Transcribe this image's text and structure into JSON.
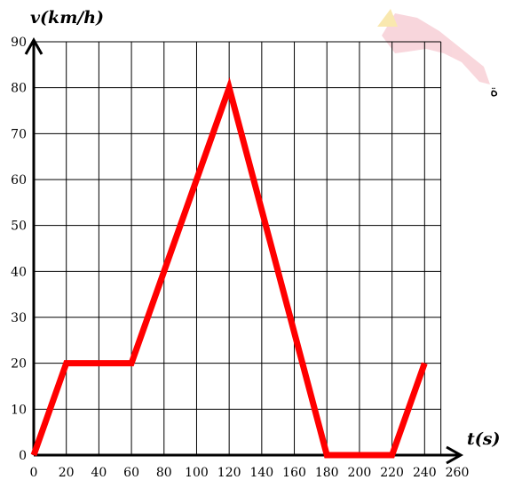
{
  "chart_data": {
    "type": "line",
    "title": "",
    "xlabel": "t(s)",
    "ylabel": "v(km/h)",
    "xlim": [
      0,
      260
    ],
    "ylim": [
      0,
      90
    ],
    "x_ticks": [
      "0",
      "20",
      "40",
      "60",
      "80",
      "100",
      "120",
      "140",
      "160",
      "180",
      "200",
      "220",
      "240",
      "260"
    ],
    "y_ticks": [
      "0",
      "10",
      "20",
      "30",
      "40",
      "50",
      "60",
      "70",
      "80",
      "90"
    ],
    "grid": true,
    "series": [
      {
        "color": "#ff0000",
        "x": [
          0,
          20,
          60,
          120,
          180,
          220,
          240
        ],
        "y": [
          0,
          20,
          20,
          80,
          0,
          0,
          20
        ]
      }
    ]
  },
  "side_text": "ة",
  "colors": {
    "line": "#ff0000",
    "grid": "#000000",
    "watermark": "#f2a6b0"
  }
}
